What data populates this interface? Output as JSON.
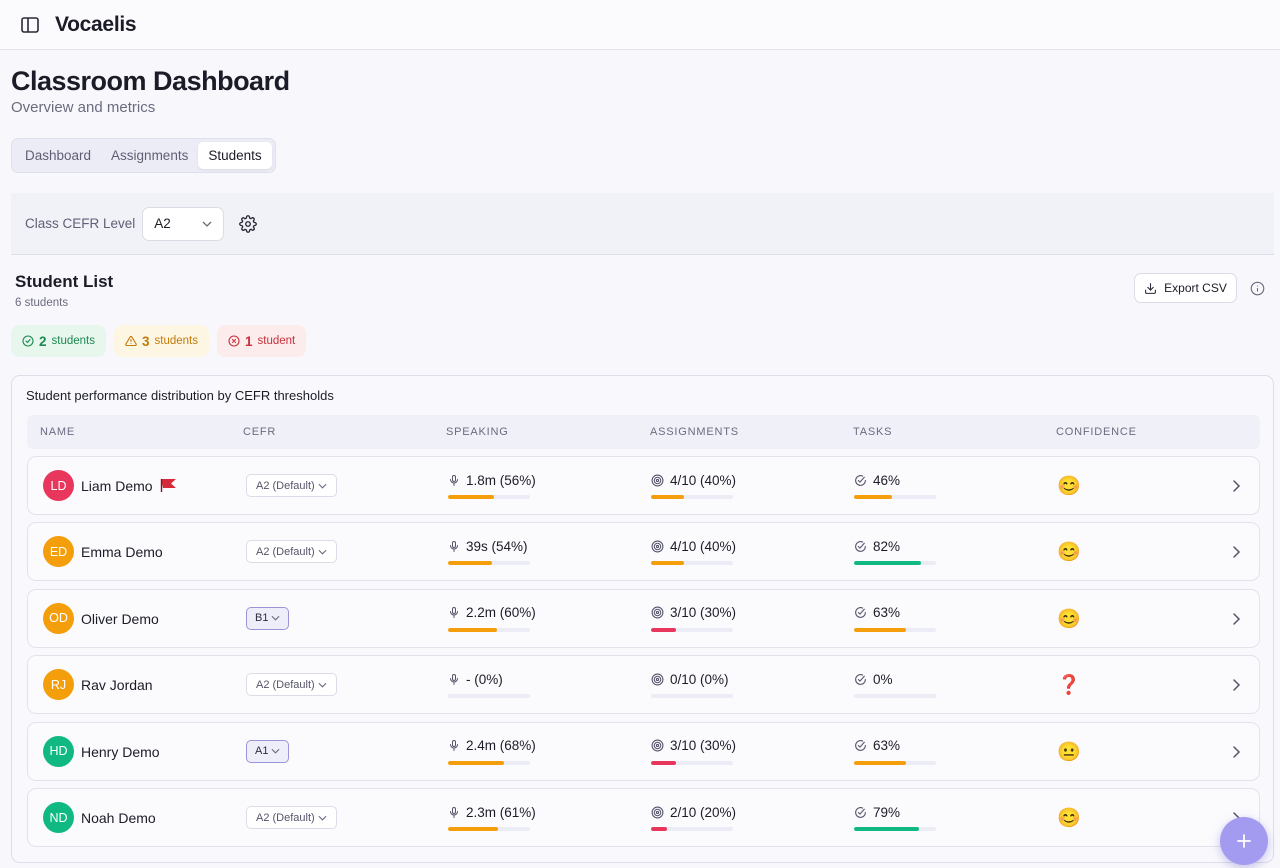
{
  "app": {
    "name": "Vocaelis"
  },
  "page": {
    "title": "Classroom Dashboard",
    "subtitle": "Overview and metrics"
  },
  "tabs": [
    {
      "label": "Dashboard",
      "active": false
    },
    {
      "label": "Assignments",
      "active": false
    },
    {
      "label": "Students",
      "active": true
    }
  ],
  "class_cefr": {
    "label": "Class CEFR Level",
    "value": "A2"
  },
  "student_list": {
    "title": "Student List",
    "count_text": "6 students",
    "export_label": "Export CSV"
  },
  "badges": [
    {
      "count": "2",
      "label": "students",
      "status": "on-track"
    },
    {
      "count": "3",
      "label": "students",
      "status": "warning"
    },
    {
      "count": "1",
      "label": "student",
      "status": "at-risk"
    }
  ],
  "table": {
    "caption": "Student performance distribution by CEFR thresholds",
    "columns": [
      "NAME",
      "CEFR",
      "SPEAKING",
      "ASSIGNMENTS",
      "TASKS",
      "CONFIDENCE"
    ],
    "rows": [
      {
        "initials": "LD",
        "name": "Liam Demo",
        "avatar_color": "#e8365d",
        "flagged": true,
        "cefr": "A2 (Default)",
        "cefr_custom": false,
        "speaking": "1.8m (56%)",
        "speaking_pct": 56,
        "speaking_color": "#f59e0b",
        "assignments": "4/10 (40%)",
        "assignments_pct": 40,
        "assignments_color": "#f59e0b",
        "tasks": "46%",
        "tasks_pct": 46,
        "tasks_color": "#f59e0b",
        "confidence": "😊"
      },
      {
        "initials": "ED",
        "name": "Emma Demo",
        "avatar_color": "#f59e0b",
        "flagged": false,
        "cefr": "A2 (Default)",
        "cefr_custom": false,
        "speaking": "39s (54%)",
        "speaking_pct": 54,
        "speaking_color": "#f59e0b",
        "assignments": "4/10 (40%)",
        "assignments_pct": 40,
        "assignments_color": "#f59e0b",
        "tasks": "82%",
        "tasks_pct": 82,
        "tasks_color": "#10b981",
        "confidence": "😊"
      },
      {
        "initials": "OD",
        "name": "Oliver Demo",
        "avatar_color": "#f59e0b",
        "flagged": false,
        "cefr": "B1",
        "cefr_custom": true,
        "speaking": "2.2m (60%)",
        "speaking_pct": 60,
        "speaking_color": "#f59e0b",
        "assignments": "3/10 (30%)",
        "assignments_pct": 30,
        "assignments_color": "#e8365d",
        "tasks": "63%",
        "tasks_pct": 63,
        "tasks_color": "#f59e0b",
        "confidence": "😊"
      },
      {
        "initials": "RJ",
        "name": "Rav Jordan",
        "avatar_color": "#f59e0b",
        "flagged": false,
        "cefr": "A2 (Default)",
        "cefr_custom": false,
        "speaking": "- (0%)",
        "speaking_pct": 0,
        "speaking_color": "#f59e0b",
        "assignments": "0/10 (0%)",
        "assignments_pct": 0,
        "assignments_color": "#e8365d",
        "tasks": "0%",
        "tasks_pct": 0,
        "tasks_color": "#e8365d",
        "confidence": "❓"
      },
      {
        "initials": "HD",
        "name": "Henry Demo",
        "avatar_color": "#10b981",
        "flagged": false,
        "cefr": "A1",
        "cefr_custom": true,
        "speaking": "2.4m (68%)",
        "speaking_pct": 68,
        "speaking_color": "#f59e0b",
        "assignments": "3/10 (30%)",
        "assignments_pct": 30,
        "assignments_color": "#e8365d",
        "tasks": "63%",
        "tasks_pct": 63,
        "tasks_color": "#f59e0b",
        "confidence": "😐"
      },
      {
        "initials": "ND",
        "name": "Noah Demo",
        "avatar_color": "#10b981",
        "flagged": false,
        "cefr": "A2 (Default)",
        "cefr_custom": false,
        "speaking": "2.3m (61%)",
        "speaking_pct": 61,
        "speaking_color": "#f59e0b",
        "assignments": "2/10 (20%)",
        "assignments_pct": 20,
        "assignments_color": "#e8365d",
        "tasks": "79%",
        "tasks_pct": 79,
        "tasks_color": "#10b981",
        "confidence": "😊"
      }
    ]
  },
  "icons": {
    "sidebar": "sidebar-toggle-icon",
    "settings": "gear-icon",
    "export": "download-icon",
    "info": "info-icon",
    "speaking": "mic-icon",
    "assignments": "target-icon",
    "tasks": "check-circle-icon",
    "row_open": "chevron-right-icon",
    "fab": "plus-icon",
    "flag": "red-flag-icon"
  }
}
